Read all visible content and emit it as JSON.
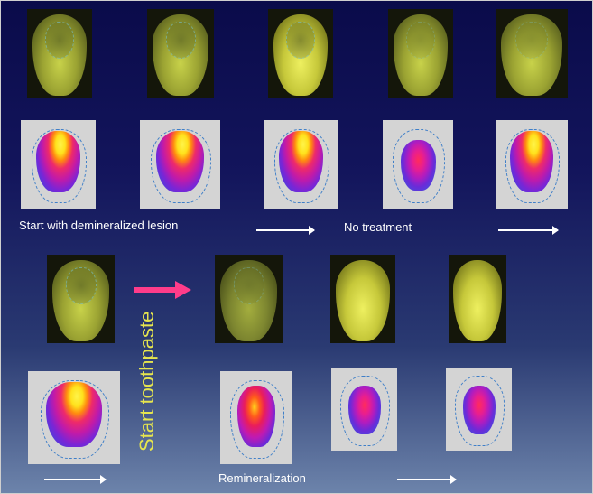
{
  "labels": {
    "start_lesion": "Start with demineralized lesion",
    "no_treatment": "No treatment",
    "start_toothpaste": "Start toothpaste",
    "remineralization": "Remineralization"
  },
  "colors": {
    "background_top": "#0a0b4a",
    "background_bottom": "#6d84ab",
    "treatment_arrow": "#ff3c8a",
    "toothpaste_text": "#e6e54e"
  },
  "images": {
    "tooth_photo": "tooth-photograph",
    "fluorescence_map": "lesion-fluorescence-heatmap"
  }
}
